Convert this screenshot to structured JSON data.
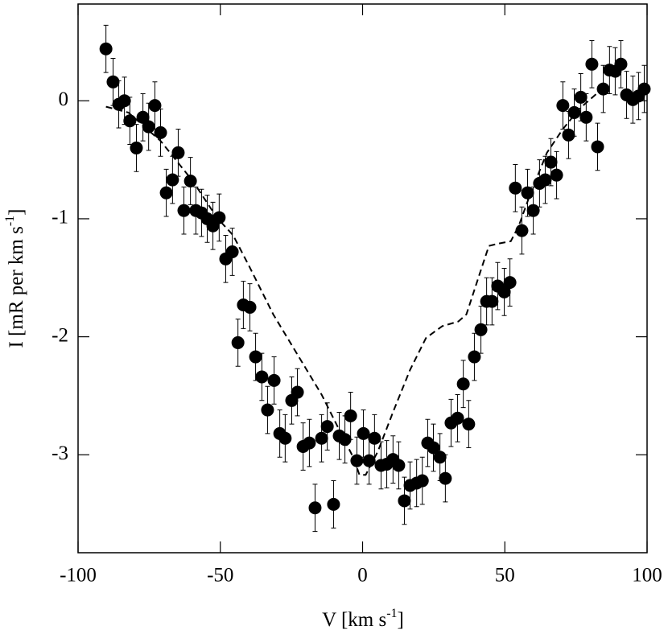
{
  "chart_data": {
    "type": "scatter",
    "xlabel": {
      "main": "V [km s",
      "sup": "-1",
      "close": "]"
    },
    "ylabel": {
      "main": "I [mR per km s",
      "sup": "-1",
      "close": "]"
    },
    "xlim": [
      -100,
      100
    ],
    "ylim": [
      -3.83,
      0.82
    ],
    "xticks": [
      -100,
      -50,
      0,
      50,
      100
    ],
    "yticks": [
      0,
      -1,
      -2,
      -3
    ],
    "color": "#000000",
    "points": {
      "x": [
        -90.2,
        -87.7,
        -85.7,
        -83.7,
        -81.8,
        -79.5,
        -77.2,
        -75.2,
        -73.0,
        -71.0,
        -69.0,
        -66.8,
        -64.8,
        -62.8,
        -60.5,
        -58.6,
        -56.6,
        -54.6,
        -52.6,
        -50.4,
        -48.1,
        -45.8,
        -43.8,
        -41.9,
        -39.6,
        -37.6,
        -35.4,
        -33.4,
        -31.1,
        -29.1,
        -27.2,
        -24.9,
        -22.9,
        -20.9,
        -18.7,
        -16.7,
        -14.4,
        -12.4,
        -10.2,
        -8.2,
        -6.2,
        -4.2,
        -2.0,
        0.3,
        2.3,
        4.2,
        6.5,
        8.5,
        10.7,
        12.7,
        14.7,
        16.7,
        19.0,
        21.0,
        22.9,
        24.9,
        27.2,
        29.1,
        31.1,
        33.4,
        35.4,
        37.3,
        39.3,
        41.6,
        43.6,
        45.5,
        47.5,
        49.8,
        51.8,
        53.7,
        56.0,
        58.0,
        60.0,
        62.2,
        64.2,
        66.2,
        68.2,
        70.4,
        72.4,
        74.4,
        76.7,
        78.6,
        80.6,
        82.6,
        84.6,
        86.8,
        88.8,
        90.8,
        92.8,
        95.0,
        97.0,
        99.0
      ],
      "y": [
        0.44,
        0.16,
        -0.03,
        0.0,
        -0.17,
        -0.4,
        -0.14,
        -0.22,
        -0.04,
        -0.27,
        -0.78,
        -0.67,
        -0.44,
        -0.93,
        -0.68,
        -0.93,
        -0.95,
        -1.0,
        -1.06,
        -0.99,
        -1.34,
        -1.28,
        -2.05,
        -1.73,
        -1.75,
        -2.17,
        -2.34,
        -2.62,
        -2.37,
        -2.82,
        -2.86,
        -2.54,
        -2.47,
        -2.93,
        -2.9,
        -3.45,
        -2.86,
        -2.76,
        -3.42,
        -2.84,
        -2.87,
        -2.67,
        -3.05,
        -2.82,
        -3.05,
        -2.86,
        -3.09,
        -3.08,
        -3.04,
        -3.09,
        -3.39,
        -3.26,
        -3.24,
        -3.22,
        -2.9,
        -2.94,
        -3.02,
        -3.2,
        -2.73,
        -2.69,
        -2.4,
        -2.74,
        -2.17,
        -1.94,
        -1.7,
        -1.7,
        -1.57,
        -1.62,
        -1.54,
        -0.74,
        -1.1,
        -0.78,
        -0.93,
        -0.7,
        -0.67,
        -0.52,
        -0.63,
        -0.04,
        -0.29,
        -0.1,
        0.03,
        -0.14,
        0.31,
        -0.39,
        0.1,
        0.26,
        0.25,
        0.31,
        0.05,
        0.01,
        0.04,
        0.1
      ],
      "errors": [
        0.2,
        0.2,
        0.2,
        0.2,
        0.2,
        0.2,
        0.2,
        0.2,
        0.2,
        0.2,
        0.2,
        0.2,
        0.2,
        0.2,
        0.2,
        0.2,
        0.2,
        0.2,
        0.2,
        0.2,
        0.2,
        0.2,
        0.2,
        0.2,
        0.2,
        0.2,
        0.2,
        0.2,
        0.2,
        0.2,
        0.2,
        0.2,
        0.2,
        0.2,
        0.2,
        0.2,
        0.2,
        0.2,
        0.2,
        0.2,
        0.2,
        0.2,
        0.2,
        0.2,
        0.2,
        0.2,
        0.2,
        0.2,
        0.2,
        0.2,
        0.2,
        0.2,
        0.2,
        0.2,
        0.2,
        0.2,
        0.2,
        0.2,
        0.2,
        0.2,
        0.2,
        0.2,
        0.2,
        0.2,
        0.2,
        0.2,
        0.2,
        0.2,
        0.2,
        0.2,
        0.2,
        0.2,
        0.2,
        0.2,
        0.2,
        0.2,
        0.2,
        0.2,
        0.2,
        0.2,
        0.2,
        0.2,
        0.2,
        0.2,
        0.2,
        0.2,
        0.2,
        0.2,
        0.2,
        0.2,
        0.2,
        0.2
      ]
    },
    "model": {
      "x": [
        -90.2,
        -82.3,
        -71.0,
        -59.7,
        -51.2,
        -45.5,
        -39.9,
        -31.4,
        -22.9,
        -14.4,
        -8.8,
        -3.1,
        -1.1,
        1.1,
        5.4,
        11.0,
        16.7,
        22.3,
        28.0,
        33.7,
        36.5,
        40.7,
        44.4,
        47.8,
        52.1,
        54.9,
        59.1,
        64.8,
        70.4,
        76.1,
        81.8,
        85.1
      ],
      "y": [
        -0.05,
        -0.1,
        -0.34,
        -0.68,
        -0.99,
        -1.14,
        -1.4,
        -1.81,
        -2.15,
        -2.49,
        -2.76,
        -3.03,
        -3.17,
        -3.17,
        -2.97,
        -2.62,
        -2.28,
        -2.01,
        -1.91,
        -1.87,
        -1.81,
        -1.5,
        -1.23,
        -1.21,
        -1.19,
        -1.06,
        -0.78,
        -0.44,
        -0.24,
        -0.07,
        0.05,
        0.14
      ],
      "dashed": true
    }
  }
}
